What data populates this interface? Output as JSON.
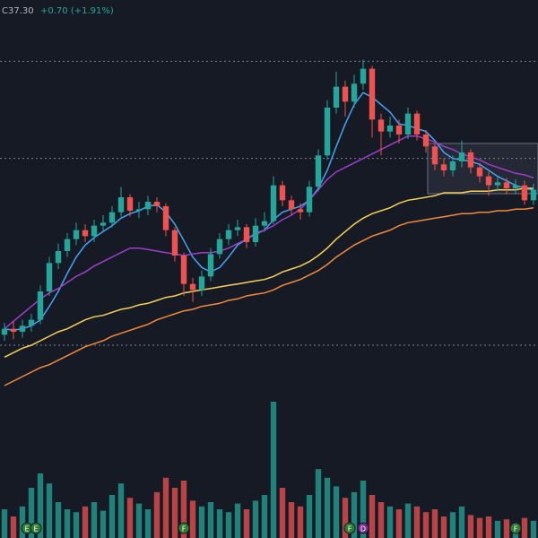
{
  "chart_data": {
    "type": "candlestick",
    "legend_text": {
      "close": "C37.30",
      "change": "+0.70 (+1.91%)"
    },
    "ylim": [
      23,
      50
    ],
    "volume_ylim": [
      0,
      10
    ],
    "up_color": "#26a69a",
    "down_color": "#ef5350",
    "open": [
      27.6,
      28.0,
      27.8,
      28.2,
      28.6,
      30.5,
      32.4,
      33.2,
      34.0,
      34.6,
      34.2,
      34.9,
      35.1,
      35.8,
      36.8,
      35.9,
      36.0,
      36.5,
      36.2,
      34.6,
      32.9,
      31.0,
      30.6,
      31.5,
      33.0,
      34.0,
      34.6,
      34.8,
      33.8,
      34.9,
      35.2,
      37.6,
      36.6,
      36.0,
      35.8,
      37.5,
      39.6,
      42.8,
      44.2,
      43.2,
      44.4,
      45.4,
      42.0,
      41.2,
      41.6,
      41.0,
      42.4,
      41.0,
      40.2,
      39.0,
      38.6,
      39.2,
      39.8,
      38.8,
      38.2,
      37.6,
      37.8,
      37.4,
      37.6,
      36.6
    ],
    "high": [
      28.4,
      28.5,
      28.6,
      29.0,
      30.9,
      32.8,
      33.7,
      34.4,
      35.1,
      35.0,
      35.3,
      35.6,
      36.2,
      37.5,
      37.0,
      36.5,
      36.9,
      36.8,
      36.4,
      34.8,
      33.1,
      31.4,
      31.9,
      33.4,
      34.4,
      35.0,
      35.3,
      35.0,
      35.4,
      35.8,
      38.2,
      37.9,
      36.9,
      36.4,
      37.9,
      40.0,
      43.3,
      45.2,
      44.6,
      45.0,
      46.0,
      45.6,
      42.4,
      42.2,
      42.0,
      42.8,
      42.6,
      41.3,
      40.4,
      39.4,
      39.6,
      40.6,
      40.0,
      39.1,
      38.5,
      38.2,
      38.1,
      38.0,
      37.9,
      37.7
    ],
    "low": [
      27.2,
      27.3,
      27.4,
      27.8,
      28.3,
      30.2,
      32.0,
      32.8,
      33.6,
      33.8,
      33.8,
      34.5,
      34.8,
      35.5,
      35.5,
      35.4,
      35.6,
      35.8,
      34.2,
      32.5,
      30.2,
      29.8,
      30.2,
      31.2,
      32.7,
      33.6,
      34.2,
      33.4,
      33.5,
      34.5,
      35.0,
      36.2,
      35.6,
      35.3,
      35.5,
      37.2,
      39.3,
      42.4,
      42.2,
      42.8,
      44.0,
      40.8,
      39.6,
      40.8,
      40.4,
      40.7,
      40.6,
      39.8,
      38.6,
      38.2,
      38.2,
      38.8,
      38.4,
      37.8,
      36.9,
      37.2,
      37.0,
      37.0,
      36.3,
      36.3
    ],
    "close": [
      28.0,
      27.8,
      28.2,
      28.6,
      30.5,
      32.4,
      33.2,
      34.0,
      34.6,
      34.2,
      34.9,
      35.1,
      35.8,
      36.8,
      35.9,
      36.0,
      36.5,
      36.2,
      34.6,
      32.9,
      31.0,
      30.6,
      31.5,
      33.0,
      34.0,
      34.6,
      34.8,
      33.8,
      34.9,
      35.2,
      37.6,
      36.6,
      36.0,
      35.8,
      37.5,
      39.6,
      42.8,
      44.2,
      43.2,
      44.4,
      45.4,
      42.0,
      41.2,
      41.6,
      41.0,
      42.4,
      41.0,
      40.2,
      39.0,
      38.6,
      39.2,
      39.8,
      38.8,
      38.2,
      37.6,
      37.8,
      37.4,
      37.6,
      36.6,
      37.3
    ],
    "volume": [
      2.0,
      1.5,
      2.2,
      3.5,
      4.5,
      3.8,
      2.5,
      2.0,
      1.8,
      2.2,
      2.5,
      1.9,
      3.0,
      3.8,
      2.8,
      2.4,
      2.0,
      3.2,
      4.2,
      3.5,
      4.0,
      2.6,
      2.2,
      2.5,
      2.0,
      1.8,
      2.4,
      2.0,
      2.6,
      3.0,
      9.5,
      3.5,
      2.5,
      2.2,
      3.0,
      4.8,
      4.2,
      3.6,
      2.8,
      3.2,
      4.0,
      3.0,
      2.5,
      2.2,
      2.0,
      2.4,
      2.2,
      1.8,
      2.0,
      1.5,
      1.8,
      2.2,
      1.6,
      1.4,
      1.5,
      1.2,
      1.3,
      1.0,
      1.4,
      1.2
    ],
    "moving_averages": [
      {
        "color": "#42a5f5",
        "values": [
          28.0,
          27.9,
          28.0,
          28.2,
          28.6,
          29.5,
          30.5,
          31.7,
          32.8,
          33.6,
          34.1,
          34.5,
          34.9,
          35.4,
          35.7,
          35.9,
          36.2,
          36.3,
          35.8,
          35.0,
          33.9,
          32.8,
          32.1,
          31.8,
          32.1,
          32.8,
          33.6,
          34.0,
          34.4,
          34.6,
          35.3,
          35.8,
          36.0,
          36.2,
          36.6,
          37.4,
          38.6,
          40.2,
          41.7,
          43.0,
          43.8,
          43.5,
          43.0,
          42.5,
          41.7,
          41.6,
          41.4,
          41.2,
          40.6,
          39.8,
          39.4,
          39.3,
          39.2,
          39.0,
          38.6,
          38.2,
          37.9,
          37.6,
          37.4,
          37.3
        ]
      },
      {
        "color": "#9c3fc7",
        "values": [
          28.0,
          28.5,
          29.0,
          29.5,
          30.0,
          30.4,
          30.7,
          31.1,
          31.5,
          31.8,
          32.2,
          32.5,
          32.8,
          33.1,
          33.4,
          33.4,
          33.3,
          33.2,
          33.1,
          33.0,
          32.9,
          33.0,
          33.1,
          33.1,
          33.2,
          33.4,
          33.7,
          34.0,
          34.3,
          34.6,
          34.9,
          35.3,
          35.6,
          36.0,
          36.6,
          37.3,
          38.0,
          38.5,
          38.8,
          39.1,
          39.4,
          39.7,
          40.0,
          40.3,
          40.6,
          40.9,
          40.9,
          40.7,
          40.5,
          40.2,
          40.0,
          39.7,
          39.5,
          39.3,
          39.0,
          38.8,
          38.6,
          38.4,
          38.3,
          38.1
        ]
      },
      {
        "color": "#f5d155",
        "values": [
          26.1,
          26.4,
          26.7,
          26.9,
          27.2,
          27.5,
          27.8,
          28.0,
          28.3,
          28.6,
          28.8,
          28.9,
          29.1,
          29.3,
          29.4,
          29.6,
          29.7,
          29.9,
          30.1,
          30.2,
          30.4,
          30.5,
          30.6,
          30.7,
          30.8,
          30.9,
          31.0,
          31.1,
          31.2,
          31.3,
          31.5,
          31.8,
          32.0,
          32.2,
          32.5,
          32.9,
          33.4,
          34.0,
          34.5,
          35.0,
          35.4,
          35.7,
          35.9,
          36.1,
          36.4,
          36.6,
          36.7,
          36.8,
          36.9,
          37.1,
          37.1,
          37.1,
          37.2,
          37.2,
          37.2,
          37.3,
          37.3,
          37.3,
          37.4,
          37.4
        ]
      },
      {
        "color": "#f08a3c",
        "values": [
          24.2,
          24.5,
          24.8,
          25.1,
          25.4,
          25.6,
          25.9,
          26.2,
          26.5,
          26.8,
          27.0,
          27.2,
          27.5,
          27.7,
          27.9,
          28.1,
          28.3,
          28.6,
          28.8,
          29.0,
          29.2,
          29.3,
          29.5,
          29.6,
          29.7,
          29.9,
          30.0,
          30.2,
          30.3,
          30.4,
          30.6,
          30.9,
          31.1,
          31.3,
          31.6,
          31.9,
          32.3,
          32.8,
          33.2,
          33.6,
          33.9,
          34.2,
          34.4,
          34.6,
          34.9,
          35.1,
          35.2,
          35.3,
          35.4,
          35.5,
          35.6,
          35.7,
          35.7,
          35.8,
          35.8,
          35.9,
          35.9,
          36.0,
          36.0,
          36.1
        ]
      }
    ],
    "levels": [
      45.9,
      39.4,
      26.9
    ],
    "level_color": "#7a8190",
    "events": [
      {
        "label": "E",
        "color": "#2e7d32"
      },
      {
        "label": "E",
        "color": "#2e7d32"
      },
      {
        "label": "F",
        "color": "#2e7d32"
      },
      {
        "label": "F",
        "color": "#2e7d32"
      },
      {
        "label": "D",
        "color": "#7b2d8e"
      },
      {
        "label": "F",
        "color": "#2e7d32"
      }
    ]
  }
}
